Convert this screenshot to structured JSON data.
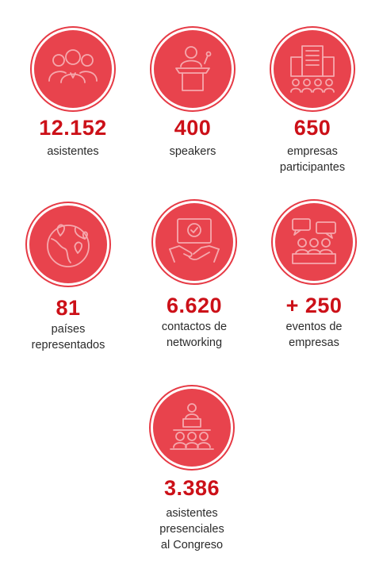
{
  "stats": [
    {
      "value": "12.152",
      "label_lines": [
        "asistentes"
      ],
      "icon": "attendees-group-icon"
    },
    {
      "value": "400",
      "label_lines": [
        "speakers"
      ],
      "icon": "speaker-podium-icon"
    },
    {
      "value": "650",
      "label_lines": [
        "empresas",
        "participantes"
      ],
      "icon": "building-people-icon"
    },
    {
      "value": "81",
      "label_lines": [
        "países",
        "representados"
      ],
      "icon": "globe-pins-icon"
    },
    {
      "value": "6.620",
      "label_lines": [
        "contactos de",
        "networking"
      ],
      "icon": "handshake-icon"
    },
    {
      "value": "+ 250",
      "label_lines": [
        "eventos de",
        "empresas"
      ],
      "icon": "company-events-icon"
    },
    {
      "value": "3.386",
      "label_lines": [
        "asistentes",
        "presenciales",
        "al Congreso"
      ],
      "icon": "conference-audience-icon"
    }
  ],
  "colors": {
    "accent": "#cc1018",
    "circle": "#e8434d",
    "ring": "#e63a45",
    "icon_line": "#f5a8ad"
  }
}
